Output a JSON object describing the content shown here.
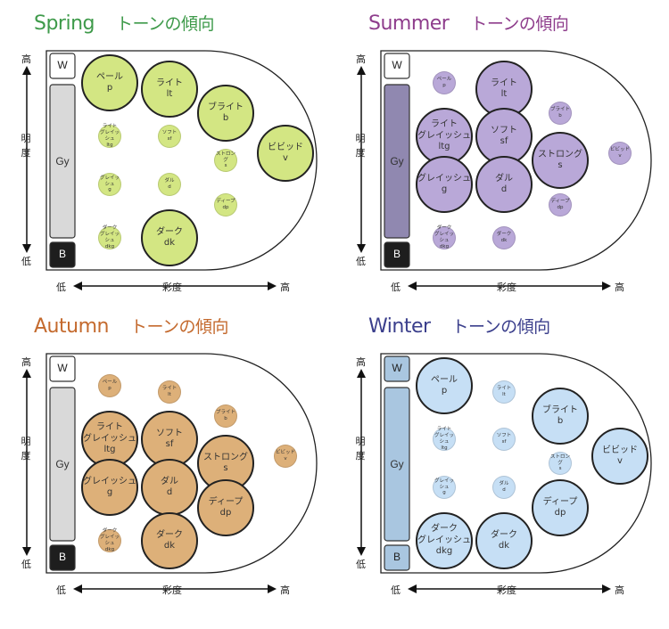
{
  "common": {
    "high": "高",
    "low": "低",
    "brightness": "明度",
    "chroma": "彩度",
    "white": "W",
    "gray": "Gy",
    "black": "B"
  },
  "panels": [
    {
      "key": "spring",
      "season": "Spring",
      "trend": "トーンの傾向",
      "title_color": "#3e9a4a",
      "fill": "#d3e683",
      "bar_colors": {
        "w": "#ffffff",
        "gy": "#d9d9d9",
        "b": "#1e1e1e"
      },
      "tones": [
        {
          "name": "ペール",
          "code": "p",
          "big": true
        },
        {
          "name": "ライト",
          "code": "lt",
          "big": true
        },
        {
          "name": "ブライト",
          "code": "b",
          "big": true
        },
        {
          "name": "ビビッド",
          "code": "v",
          "big": true
        },
        {
          "name": "ライト\nグレイッシュ",
          "code": "ltg",
          "big": false
        },
        {
          "name": "ソフト",
          "code": "sf",
          "big": false
        },
        {
          "name": "ストロング",
          "code": "s",
          "big": false
        },
        {
          "name": "グレイッシュ",
          "code": "g",
          "big": false
        },
        {
          "name": "ダル",
          "code": "d",
          "big": false
        },
        {
          "name": "ディープ",
          "code": "dp",
          "big": false
        },
        {
          "name": "ダーク\nグレイッシュ",
          "code": "dkg",
          "big": false
        },
        {
          "name": "ダーク",
          "code": "dk",
          "big": true
        }
      ]
    },
    {
      "key": "summer",
      "season": "Summer",
      "trend": "トーンの傾向",
      "title_color": "#8e3d8c",
      "fill": "#b9a8d8",
      "bar_colors": {
        "w": "#ffffff",
        "gy": "#9088b0",
        "b": "#1e1e1e"
      },
      "tones": [
        {
          "name": "ペール",
          "code": "p",
          "big": false
        },
        {
          "name": "ライト",
          "code": "lt",
          "big": true
        },
        {
          "name": "ブライト",
          "code": "b",
          "big": false
        },
        {
          "name": "ビビッド",
          "code": "v",
          "big": false
        },
        {
          "name": "ライト\nグレイッシュ",
          "code": "ltg",
          "big": true
        },
        {
          "name": "ソフト",
          "code": "sf",
          "big": true
        },
        {
          "name": "ストロング",
          "code": "s",
          "big": true
        },
        {
          "name": "グレイッシュ",
          "code": "g",
          "big": true
        },
        {
          "name": "ダル",
          "code": "d",
          "big": true
        },
        {
          "name": "ディープ",
          "code": "dp",
          "big": false
        },
        {
          "name": "ダーク\nグレイッシュ",
          "code": "dkg",
          "big": false
        },
        {
          "name": "ダーク",
          "code": "dk",
          "big": false
        }
      ]
    },
    {
      "key": "autumn",
      "season": "Autumn",
      "trend": "トーンの傾向",
      "title_color": "#c46a2e",
      "fill": "#ddb079",
      "bar_colors": {
        "w": "#ffffff",
        "gy": "#d9d9d9",
        "b": "#1e1e1e"
      },
      "tones": [
        {
          "name": "ペール",
          "code": "p",
          "big": false
        },
        {
          "name": "ライト",
          "code": "lt",
          "big": false
        },
        {
          "name": "ブライト",
          "code": "b",
          "big": false
        },
        {
          "name": "ビビッド",
          "code": "v",
          "big": false
        },
        {
          "name": "ライト\nグレイッシュ",
          "code": "ltg",
          "big": true
        },
        {
          "name": "ソフト",
          "code": "sf",
          "big": true
        },
        {
          "name": "ストロング",
          "code": "s",
          "big": true
        },
        {
          "name": "グレイッシュ",
          "code": "g",
          "big": true
        },
        {
          "name": "ダル",
          "code": "d",
          "big": true
        },
        {
          "name": "ディープ",
          "code": "dp",
          "big": true
        },
        {
          "name": "ダーク\nグレイッシュ",
          "code": "dkg",
          "big": false
        },
        {
          "name": "ダーク",
          "code": "dk",
          "big": true
        }
      ]
    },
    {
      "key": "winter",
      "season": "Winter",
      "trend": "トーンの傾向",
      "title_color": "#3b3f8c",
      "fill": "#c6dff5",
      "bar_colors": {
        "w": "#a9c6e0",
        "gy": "#a9c6e0",
        "b": "#a9c6e0"
      },
      "tones": [
        {
          "name": "ペール",
          "code": "p",
          "big": true
        },
        {
          "name": "ライト",
          "code": "lt",
          "big": false
        },
        {
          "name": "ブライト",
          "code": "b",
          "big": true
        },
        {
          "name": "ビビッド",
          "code": "v",
          "big": true
        },
        {
          "name": "ライト\nグレイッシュ",
          "code": "ltg",
          "big": false
        },
        {
          "name": "ソフト",
          "code": "sf",
          "big": false
        },
        {
          "name": "ストロング",
          "code": "s",
          "big": false
        },
        {
          "name": "グレイッシュ",
          "code": "g",
          "big": false
        },
        {
          "name": "ダル",
          "code": "d",
          "big": false
        },
        {
          "name": "ディープ",
          "code": "dp",
          "big": true
        },
        {
          "name": "ダーク\nグレイッシュ",
          "code": "dkg",
          "big": true
        },
        {
          "name": "ダーク",
          "code": "dk",
          "big": true
        }
      ]
    }
  ]
}
